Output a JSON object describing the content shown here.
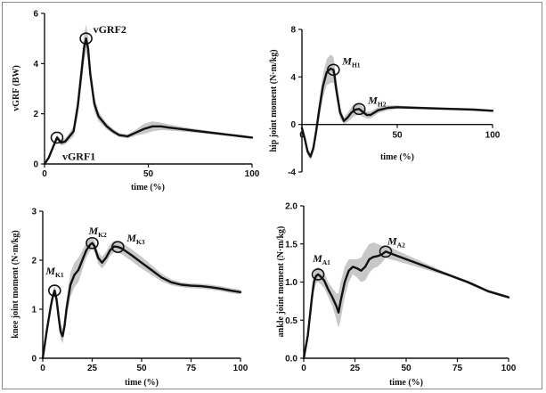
{
  "chart_data": [
    {
      "id": "vgrf",
      "type": "line",
      "xlabel": "time (%)",
      "ylabel": "vGRF (BW)",
      "xlim": [
        0,
        100
      ],
      "ylim": [
        0,
        6
      ],
      "xticks": [
        0,
        50,
        100
      ],
      "yticks": [
        0,
        2,
        4,
        6
      ],
      "ytick_labels": [
        "0",
        "2",
        "4",
        "6"
      ],
      "series": [
        {
          "x": [
            0,
            2,
            4,
            6,
            8,
            10,
            12,
            14,
            16,
            18,
            19,
            20,
            21,
            22,
            24,
            26,
            28,
            30,
            33,
            36,
            40,
            44,
            48,
            52,
            56,
            60,
            65,
            70,
            75,
            80,
            85,
            90,
            95,
            100
          ],
          "y": [
            0,
            0.25,
            0.65,
            1.05,
            0.85,
            0.9,
            1.1,
            1.3,
            2.3,
            3.8,
            4.6,
            5.0,
            4.6,
            3.6,
            2.4,
            1.9,
            1.7,
            1.5,
            1.3,
            1.15,
            1.1,
            1.25,
            1.4,
            1.5,
            1.5,
            1.45,
            1.4,
            1.35,
            1.3,
            1.25,
            1.2,
            1.15,
            1.1,
            1.05
          ],
          "sd": [
            0,
            0.05,
            0.1,
            0.12,
            0.12,
            0.12,
            0.15,
            0.2,
            0.4,
            0.5,
            0.55,
            0.55,
            0.5,
            0.4,
            0.3,
            0.2,
            0.15,
            0.12,
            0.1,
            0.08,
            0.08,
            0.12,
            0.2,
            0.2,
            0.15,
            0.12,
            0.1,
            0.08,
            0.07,
            0.06,
            0.06,
            0.05,
            0.05,
            0.05
          ]
        }
      ],
      "annotations": [
        {
          "main": "vGRF1",
          "sub": "",
          "x": 6,
          "y": 1.05
        },
        {
          "main": "vGRF2",
          "sub": "",
          "x": 20,
          "y": 5.0
        }
      ]
    },
    {
      "id": "hip",
      "type": "line",
      "xlabel": "time (%)",
      "ylabel": "hip joint moment (N·m/kg)",
      "xlim": [
        0,
        100
      ],
      "ylim": [
        -4,
        8
      ],
      "xticks": [
        0,
        50,
        100
      ],
      "yticks": [
        -4,
        0,
        4,
        8
      ],
      "ytick_labels": [
        "-4",
        "0",
        "4",
        "8"
      ],
      "series": [
        {
          "x": [
            0,
            1.5,
            3,
            4.5,
            6,
            7.5,
            9,
            11,
            13,
            15,
            16.5,
            17,
            18,
            20,
            22,
            24,
            26,
            28,
            30,
            32,
            34,
            36,
            40,
            45,
            50,
            60,
            70,
            80,
            90,
            100
          ],
          "y": [
            -0.3,
            -1.2,
            -2.3,
            -2.7,
            -2.0,
            -0.5,
            1.2,
            3.2,
            4.4,
            4.7,
            4.6,
            4.2,
            3.0,
            1.0,
            0.3,
            0.6,
            1.0,
            1.25,
            1.3,
            1.05,
            0.8,
            0.8,
            1.2,
            1.4,
            1.45,
            1.4,
            1.35,
            1.3,
            1.25,
            1.15
          ],
          "sd": [
            0.1,
            0.2,
            0.3,
            0.3,
            0.4,
            0.6,
            0.8,
            1.0,
            1.1,
            1.2,
            1.1,
            1.0,
            0.8,
            0.5,
            0.3,
            0.4,
            0.5,
            0.5,
            0.5,
            0.4,
            0.3,
            0.3,
            0.25,
            0.2,
            0.15,
            0.1,
            0.1,
            0.1,
            0.1,
            0.1
          ]
        }
      ],
      "annotations": [
        {
          "main": "M",
          "sub": "H1",
          "x": 16.5,
          "y": 4.6
        },
        {
          "main": "M",
          "sub": "H2",
          "x": 30,
          "y": 1.3
        }
      ]
    },
    {
      "id": "knee",
      "type": "line",
      "xlabel": "time (%)",
      "ylabel": "knee joint moment (N·m/kg)",
      "xlim": [
        0,
        100
      ],
      "ylim": [
        0,
        3
      ],
      "xticks": [
        0,
        25,
        50,
        75,
        100
      ],
      "yticks": [
        0,
        1,
        2,
        3
      ],
      "ytick_labels": [
        "0",
        "1",
        "2",
        "3"
      ],
      "series": [
        {
          "x": [
            0,
            2,
            4,
            5,
            6,
            7,
            8,
            9,
            10,
            11,
            12,
            14,
            16,
            18,
            20,
            22,
            24,
            25,
            26,
            28,
            30,
            32,
            34,
            36,
            38,
            40,
            45,
            50,
            55,
            60,
            65,
            70,
            75,
            80,
            85,
            90,
            95,
            100
          ],
          "y": [
            0,
            0.55,
            1.05,
            1.25,
            1.38,
            1.2,
            0.85,
            0.55,
            0.45,
            0.65,
            1.0,
            1.5,
            1.7,
            1.8,
            2.0,
            2.2,
            2.32,
            2.35,
            2.3,
            2.05,
            1.95,
            2.05,
            2.2,
            2.28,
            2.27,
            2.24,
            2.1,
            1.95,
            1.8,
            1.65,
            1.55,
            1.5,
            1.48,
            1.47,
            1.45,
            1.42,
            1.38,
            1.35
          ],
          "sd": [
            0,
            0.05,
            0.1,
            0.1,
            0.12,
            0.15,
            0.15,
            0.15,
            0.15,
            0.15,
            0.2,
            0.25,
            0.25,
            0.25,
            0.2,
            0.15,
            0.12,
            0.12,
            0.12,
            0.12,
            0.12,
            0.12,
            0.12,
            0.12,
            0.12,
            0.12,
            0.12,
            0.12,
            0.1,
            0.08,
            0.06,
            0.05,
            0.05,
            0.05,
            0.05,
            0.05,
            0.05,
            0.05
          ]
        }
      ],
      "annotations": [
        {
          "main": "M",
          "sub": "K1",
          "x": 6,
          "y": 1.38
        },
        {
          "main": "M",
          "sub": "K2",
          "x": 25,
          "y": 2.35
        },
        {
          "main": "M",
          "sub": "K3",
          "x": 38,
          "y": 2.27
        }
      ]
    },
    {
      "id": "ankle",
      "type": "line",
      "xlabel": "time (%)",
      "ylabel": "ankle joint moment (N·m/kg)",
      "xlim": [
        0,
        100
      ],
      "ylim": [
        0,
        2.0
      ],
      "xticks": [
        0,
        25,
        50,
        75,
        100
      ],
      "yticks": [
        0,
        0.5,
        1.0,
        1.5,
        2.0
      ],
      "ytick_labels": [
        "0.0",
        "0.5",
        "1.0",
        "1.5",
        "2.0"
      ],
      "series": [
        {
          "x": [
            0,
            2,
            3,
            4,
            5,
            6,
            7,
            8,
            10,
            12,
            14,
            16,
            17,
            18,
            20,
            22,
            24,
            26,
            28,
            30,
            32,
            34,
            36,
            38,
            40,
            42,
            45,
            50,
            55,
            60,
            65,
            70,
            75,
            80,
            85,
            90,
            95,
            100
          ],
          "y": [
            0,
            0.3,
            0.55,
            0.8,
            1.0,
            1.08,
            1.1,
            1.08,
            1.02,
            0.9,
            0.8,
            0.68,
            0.6,
            0.75,
            1.0,
            1.15,
            1.2,
            1.18,
            1.15,
            1.2,
            1.3,
            1.33,
            1.34,
            1.36,
            1.4,
            1.38,
            1.35,
            1.3,
            1.25,
            1.2,
            1.15,
            1.1,
            1.05,
            1.0,
            0.94,
            0.88,
            0.84,
            0.8
          ]
        }
      ],
      "band_upper": [
        0,
        0.38,
        0.65,
        0.95,
        1.12,
        1.18,
        1.2,
        1.18,
        1.12,
        1.0,
        0.92,
        0.85,
        0.85,
        1.0,
        1.2,
        1.3,
        1.3,
        1.3,
        1.32,
        1.42,
        1.5,
        1.52,
        1.5,
        1.48,
        1.48,
        1.46,
        1.42,
        1.36,
        1.3,
        1.24,
        1.18,
        1.12,
        1.07,
        1.02,
        0.96,
        0.9,
        0.86,
        0.82
      ],
      "band_lower": [
        0,
        0.22,
        0.45,
        0.65,
        0.88,
        0.98,
        1.0,
        0.98,
        0.92,
        0.8,
        0.68,
        0.5,
        0.4,
        0.5,
        0.8,
        1.0,
        1.1,
        1.06,
        1.0,
        1.02,
        1.12,
        1.18,
        1.2,
        1.25,
        1.32,
        1.3,
        1.28,
        1.24,
        1.2,
        1.16,
        1.12,
        1.08,
        1.03,
        0.98,
        0.92,
        0.86,
        0.82,
        0.78
      ],
      "annotations": [
        {
          "main": "M",
          "sub": "A1",
          "x": 7,
          "y": 1.1
        },
        {
          "main": "M",
          "sub": "A2",
          "x": 40,
          "y": 1.4
        }
      ]
    }
  ]
}
